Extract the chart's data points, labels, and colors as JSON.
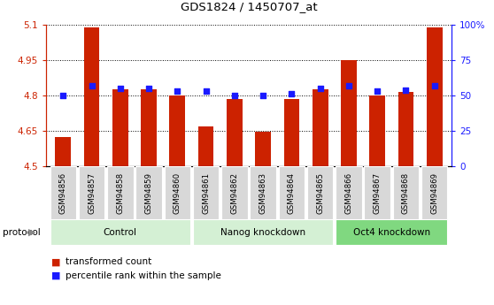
{
  "title": "GDS1824 / 1450707_at",
  "samples": [
    "GSM94856",
    "GSM94857",
    "GSM94858",
    "GSM94859",
    "GSM94860",
    "GSM94861",
    "GSM94862",
    "GSM94863",
    "GSM94864",
    "GSM94865",
    "GSM94866",
    "GSM94867",
    "GSM94868",
    "GSM94869"
  ],
  "transformed_count": [
    4.625,
    5.09,
    4.825,
    4.825,
    4.8,
    4.67,
    4.785,
    4.645,
    4.785,
    4.825,
    4.95,
    4.8,
    4.815,
    5.09
  ],
  "percentile_rank": [
    50,
    57,
    55,
    55,
    53,
    53,
    50,
    50,
    51,
    55,
    57,
    53,
    54,
    57
  ],
  "ylim_left": [
    4.5,
    5.1
  ],
  "ylim_right": [
    0,
    100
  ],
  "left_ticks": [
    4.5,
    4.65,
    4.8,
    4.95,
    5.1
  ],
  "right_ticks": [
    0,
    25,
    50,
    75,
    100
  ],
  "right_tick_labels": [
    "0",
    "25",
    "50",
    "75",
    "100%"
  ],
  "bar_color": "#cc2200",
  "dot_color": "#1a1aff",
  "axis_color_left": "#cc2200",
  "axis_color_right": "#1a1aff",
  "group_defs": [
    {
      "name": "Control",
      "start": 0,
      "end": 4,
      "color": "#d4f0d4"
    },
    {
      "name": "Nanog knockdown",
      "start": 5,
      "end": 9,
      "color": "#d4f0d4"
    },
    {
      "name": "Oct4 knockdown",
      "start": 10,
      "end": 13,
      "color": "#80d880"
    }
  ],
  "sample_bg_color": "#d8d8d8",
  "plot_bg_color": "white",
  "fig_bg_color": "white"
}
